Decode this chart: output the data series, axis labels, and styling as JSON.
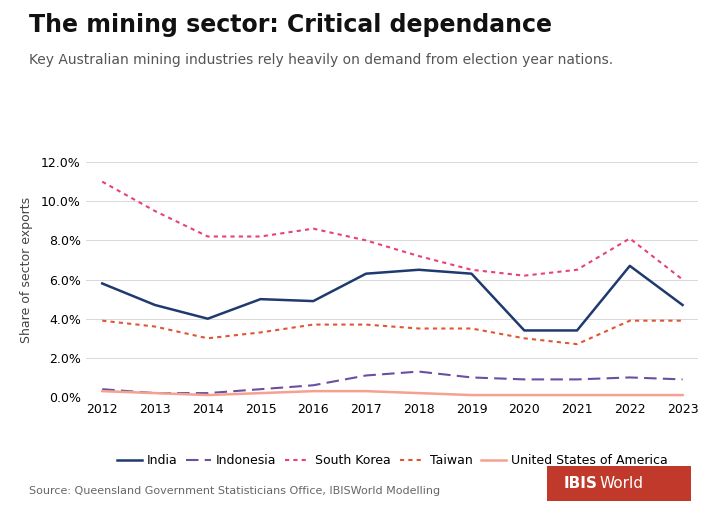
{
  "title": "The mining sector: Critical dependance",
  "subtitle": "Key Australian mining industries rely heavily on demand from election year nations.",
  "ylabel": "Share of sector exports",
  "source": "Source: Queensland Government Statisticians Office, IBISWorld Modelling",
  "years": [
    2012,
    2013,
    2014,
    2015,
    2016,
    2017,
    2018,
    2019,
    2020,
    2021,
    2022,
    2023
  ],
  "india": [
    0.058,
    0.047,
    0.04,
    0.05,
    0.049,
    0.063,
    0.065,
    0.063,
    0.034,
    0.034,
    0.067,
    0.047
  ],
  "indonesia": [
    0.004,
    0.002,
    0.002,
    0.004,
    0.006,
    0.011,
    0.013,
    0.01,
    0.009,
    0.009,
    0.01,
    0.009
  ],
  "south_korea": [
    0.11,
    0.095,
    0.082,
    0.082,
    0.086,
    0.08,
    0.072,
    0.065,
    0.062,
    0.065,
    0.081,
    0.06
  ],
  "taiwan": [
    0.039,
    0.036,
    0.03,
    0.033,
    0.037,
    0.037,
    0.035,
    0.035,
    0.03,
    0.027,
    0.039,
    0.039
  ],
  "usa": [
    0.003,
    0.002,
    0.001,
    0.002,
    0.003,
    0.003,
    0.002,
    0.001,
    0.001,
    0.001,
    0.001,
    0.001
  ],
  "india_color": "#1f3a6e",
  "indonesia_color": "#6b4fa0",
  "south_korea_color": "#e8407a",
  "taiwan_color": "#e05535",
  "usa_color": "#f5a090",
  "ylim": [
    0.0,
    0.13
  ],
  "yticks": [
    0.0,
    0.02,
    0.04,
    0.06,
    0.08,
    0.1,
    0.12
  ],
  "background_color": "#ffffff",
  "grid_color": "#d8d8d8",
  "title_fontsize": 17,
  "subtitle_fontsize": 10,
  "axis_fontsize": 9,
  "legend_fontsize": 9,
  "source_fontsize": 8
}
